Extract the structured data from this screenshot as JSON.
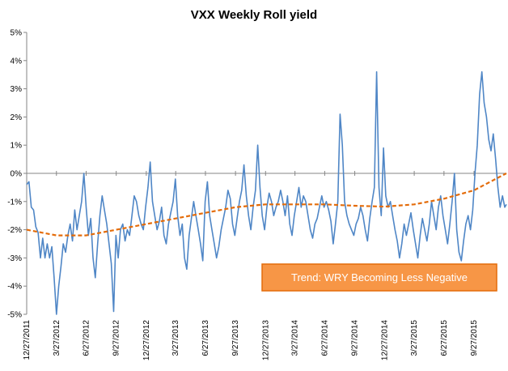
{
  "chart_data": {
    "type": "line",
    "title": "VXX Weekly Roll yield",
    "xlabel": "",
    "ylabel": "",
    "ylim": [
      -0.05,
      0.05
    ],
    "y_ticks": [
      {
        "value": 0.05,
        "label": "5%"
      },
      {
        "value": 0.04,
        "label": "4%"
      },
      {
        "value": 0.03,
        "label": "3%"
      },
      {
        "value": 0.02,
        "label": "2%"
      },
      {
        "value": 0.01,
        "label": "1%"
      },
      {
        "value": 0.0,
        "label": "0%"
      },
      {
        "value": -0.01,
        "label": "-1%"
      },
      {
        "value": -0.02,
        "label": "-2%"
      },
      {
        "value": -0.03,
        "label": "-3%"
      },
      {
        "value": -0.04,
        "label": "-4%"
      },
      {
        "value": -0.05,
        "label": "-5%"
      }
    ],
    "x_range": [
      0,
      1468
    ],
    "x_ticks": [
      {
        "value": 0,
        "label": "12/27/2011"
      },
      {
        "value": 91,
        "label": "3/27/2012"
      },
      {
        "value": 182,
        "label": "6/27/2012"
      },
      {
        "value": 274,
        "label": "9/27/2012"
      },
      {
        "value": 366,
        "label": "12/27/2012"
      },
      {
        "value": 456,
        "label": "3/27/2013"
      },
      {
        "value": 547,
        "label": "6/27/2013"
      },
      {
        "value": 639,
        "label": "9/27/2013"
      },
      {
        "value": 731,
        "label": "12/27/2013"
      },
      {
        "value": 821,
        "label": "3/27/2014"
      },
      {
        "value": 912,
        "label": "6/27/2014"
      },
      {
        "value": 1004,
        "label": "9/27/2014"
      },
      {
        "value": 1096,
        "label": "12/27/2014"
      },
      {
        "value": 1186,
        "label": "3/27/2015"
      },
      {
        "value": 1277,
        "label": "6/27/2015"
      },
      {
        "value": 1369,
        "label": "9/27/2015"
      }
    ],
    "series": [
      {
        "name": "",
        "color": "#4f86c6",
        "points": [
          [
            0,
            -0.004
          ],
          [
            7,
            -0.003
          ],
          [
            14,
            -0.012
          ],
          [
            21,
            -0.013
          ],
          [
            28,
            -0.019
          ],
          [
            35,
            -0.021
          ],
          [
            42,
            -0.03
          ],
          [
            49,
            -0.023
          ],
          [
            56,
            -0.03
          ],
          [
            63,
            -0.025
          ],
          [
            70,
            -0.03
          ],
          [
            77,
            -0.026
          ],
          [
            84,
            -0.037
          ],
          [
            91,
            -0.05
          ],
          [
            98,
            -0.04
          ],
          [
            105,
            -0.033
          ],
          [
            112,
            -0.025
          ],
          [
            119,
            -0.028
          ],
          [
            126,
            -0.022
          ],
          [
            133,
            -0.018
          ],
          [
            140,
            -0.024
          ],
          [
            147,
            -0.013
          ],
          [
            154,
            -0.02
          ],
          [
            161,
            -0.015
          ],
          [
            168,
            -0.01
          ],
          [
            175,
            0.0
          ],
          [
            182,
            -0.012
          ],
          [
            189,
            -0.022
          ],
          [
            196,
            -0.016
          ],
          [
            203,
            -0.03
          ],
          [
            210,
            -0.037
          ],
          [
            217,
            -0.025
          ],
          [
            224,
            -0.015
          ],
          [
            231,
            -0.008
          ],
          [
            238,
            -0.013
          ],
          [
            245,
            -0.018
          ],
          [
            252,
            -0.025
          ],
          [
            259,
            -0.032
          ],
          [
            266,
            -0.049
          ],
          [
            273,
            -0.022
          ],
          [
            280,
            -0.03
          ],
          [
            287,
            -0.02
          ],
          [
            294,
            -0.018
          ],
          [
            301,
            -0.024
          ],
          [
            308,
            -0.02
          ],
          [
            315,
            -0.022
          ],
          [
            322,
            -0.015
          ],
          [
            329,
            -0.008
          ],
          [
            336,
            -0.01
          ],
          [
            343,
            -0.015
          ],
          [
            350,
            -0.018
          ],
          [
            357,
            -0.02
          ],
          [
            364,
            -0.012
          ],
          [
            371,
            -0.005
          ],
          [
            378,
            0.004
          ],
          [
            385,
            -0.01
          ],
          [
            392,
            -0.015
          ],
          [
            399,
            -0.02
          ],
          [
            406,
            -0.017
          ],
          [
            413,
            -0.012
          ],
          [
            420,
            -0.022
          ],
          [
            427,
            -0.025
          ],
          [
            434,
            -0.018
          ],
          [
            441,
            -0.014
          ],
          [
            448,
            -0.01
          ],
          [
            455,
            -0.002
          ],
          [
            462,
            -0.015
          ],
          [
            469,
            -0.022
          ],
          [
            476,
            -0.018
          ],
          [
            483,
            -0.03
          ],
          [
            490,
            -0.034
          ],
          [
            497,
            -0.022
          ],
          [
            504,
            -0.016
          ],
          [
            511,
            -0.01
          ],
          [
            518,
            -0.015
          ],
          [
            525,
            -0.02
          ],
          [
            532,
            -0.025
          ],
          [
            539,
            -0.031
          ],
          [
            546,
            -0.01
          ],
          [
            553,
            -0.003
          ],
          [
            560,
            -0.015
          ],
          [
            567,
            -0.02
          ],
          [
            574,
            -0.025
          ],
          [
            581,
            -0.03
          ],
          [
            588,
            -0.026
          ],
          [
            595,
            -0.02
          ],
          [
            602,
            -0.016
          ],
          [
            609,
            -0.012
          ],
          [
            616,
            -0.006
          ],
          [
            623,
            -0.009
          ],
          [
            630,
            -0.018
          ],
          [
            637,
            -0.022
          ],
          [
            644,
            -0.016
          ],
          [
            651,
            -0.01
          ],
          [
            658,
            -0.006
          ],
          [
            665,
            0.003
          ],
          [
            672,
            -0.008
          ],
          [
            679,
            -0.015
          ],
          [
            686,
            -0.02
          ],
          [
            693,
            -0.012
          ],
          [
            700,
            -0.006
          ],
          [
            707,
            0.01
          ],
          [
            714,
            -0.005
          ],
          [
            721,
            -0.015
          ],
          [
            728,
            -0.02
          ],
          [
            735,
            -0.012
          ],
          [
            742,
            -0.007
          ],
          [
            749,
            -0.01
          ],
          [
            756,
            -0.015
          ],
          [
            763,
            -0.012
          ],
          [
            770,
            -0.01
          ],
          [
            777,
            -0.006
          ],
          [
            784,
            -0.01
          ],
          [
            791,
            -0.015
          ],
          [
            798,
            -0.008
          ],
          [
            805,
            -0.018
          ],
          [
            812,
            -0.022
          ],
          [
            819,
            -0.015
          ],
          [
            826,
            -0.01
          ],
          [
            833,
            -0.005
          ],
          [
            840,
            -0.012
          ],
          [
            847,
            -0.008
          ],
          [
            854,
            -0.01
          ],
          [
            861,
            -0.015
          ],
          [
            868,
            -0.02
          ],
          [
            875,
            -0.023
          ],
          [
            882,
            -0.018
          ],
          [
            889,
            -0.016
          ],
          [
            896,
            -0.012
          ],
          [
            903,
            -0.008
          ],
          [
            910,
            -0.012
          ],
          [
            917,
            -0.01
          ],
          [
            924,
            -0.013
          ],
          [
            931,
            -0.017
          ],
          [
            938,
            -0.025
          ],
          [
            945,
            -0.018
          ],
          [
            952,
            -0.01
          ],
          [
            959,
            0.021
          ],
          [
            966,
            0.01
          ],
          [
            973,
            -0.01
          ],
          [
            980,
            -0.015
          ],
          [
            987,
            -0.018
          ],
          [
            994,
            -0.02
          ],
          [
            1001,
            -0.022
          ],
          [
            1008,
            -0.018
          ],
          [
            1015,
            -0.016
          ],
          [
            1022,
            -0.012
          ],
          [
            1029,
            -0.015
          ],
          [
            1036,
            -0.02
          ],
          [
            1043,
            -0.024
          ],
          [
            1050,
            -0.016
          ],
          [
            1057,
            -0.01
          ],
          [
            1064,
            -0.005
          ],
          [
            1071,
            0.036
          ],
          [
            1078,
            -0.005
          ],
          [
            1085,
            -0.015
          ],
          [
            1092,
            0.009
          ],
          [
            1099,
            -0.008
          ],
          [
            1106,
            -0.012
          ],
          [
            1113,
            -0.01
          ],
          [
            1120,
            -0.015
          ],
          [
            1127,
            -0.02
          ],
          [
            1134,
            -0.024
          ],
          [
            1141,
            -0.03
          ],
          [
            1148,
            -0.025
          ],
          [
            1155,
            -0.018
          ],
          [
            1162,
            -0.022
          ],
          [
            1169,
            -0.018
          ],
          [
            1176,
            -0.014
          ],
          [
            1183,
            -0.02
          ],
          [
            1190,
            -0.025
          ],
          [
            1197,
            -0.03
          ],
          [
            1204,
            -0.022
          ],
          [
            1211,
            -0.016
          ],
          [
            1218,
            -0.02
          ],
          [
            1225,
            -0.024
          ],
          [
            1232,
            -0.018
          ],
          [
            1239,
            -0.01
          ],
          [
            1246,
            -0.015
          ],
          [
            1253,
            -0.02
          ],
          [
            1260,
            -0.012
          ],
          [
            1267,
            -0.008
          ],
          [
            1274,
            -0.015
          ],
          [
            1281,
            -0.02
          ],
          [
            1288,
            -0.025
          ],
          [
            1295,
            -0.018
          ],
          [
            1302,
            -0.01
          ],
          [
            1309,
            0.0
          ],
          [
            1316,
            -0.02
          ],
          [
            1323,
            -0.028
          ],
          [
            1330,
            -0.031
          ],
          [
            1337,
            -0.024
          ],
          [
            1344,
            -0.018
          ],
          [
            1351,
            -0.015
          ],
          [
            1358,
            -0.02
          ],
          [
            1365,
            -0.013
          ],
          [
            1372,
            0.0
          ],
          [
            1379,
            0.01
          ],
          [
            1386,
            0.028
          ],
          [
            1393,
            0.036
          ],
          [
            1400,
            0.025
          ],
          [
            1407,
            0.02
          ],
          [
            1414,
            0.012
          ],
          [
            1421,
            0.008
          ],
          [
            1428,
            0.014
          ],
          [
            1435,
            0.005
          ],
          [
            1442,
            -0.005
          ],
          [
            1449,
            -0.012
          ],
          [
            1456,
            -0.008
          ],
          [
            1463,
            -0.012
          ],
          [
            1468,
            -0.011
          ]
        ]
      },
      {
        "name": "",
        "color": "#e46c0a",
        "dashed": true,
        "points": [
          [
            0,
            -0.02
          ],
          [
            91,
            -0.022
          ],
          [
            182,
            -0.022
          ],
          [
            274,
            -0.02
          ],
          [
            366,
            -0.018
          ],
          [
            456,
            -0.016
          ],
          [
            547,
            -0.014
          ],
          [
            639,
            -0.012
          ],
          [
            731,
            -0.011
          ],
          [
            821,
            -0.011
          ],
          [
            912,
            -0.011
          ],
          [
            1004,
            -0.0115
          ],
          [
            1096,
            -0.0118
          ],
          [
            1186,
            -0.011
          ],
          [
            1277,
            -0.009
          ],
          [
            1369,
            -0.006
          ],
          [
            1468,
            0.0
          ]
        ]
      }
    ],
    "annotation": {
      "text": "Trend: WRY Becoming Less Negative",
      "fill": "#f79646",
      "border": "#e46c0a"
    }
  }
}
